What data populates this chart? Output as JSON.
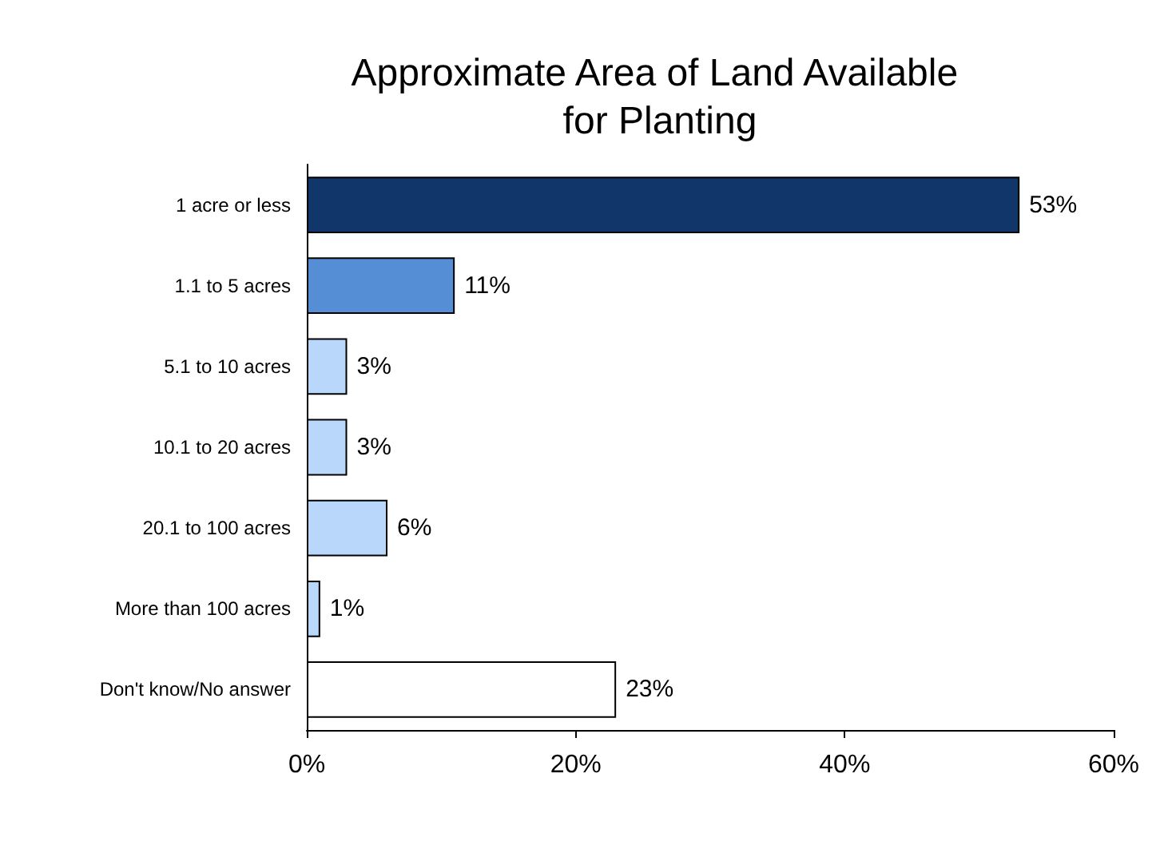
{
  "chart_data": {
    "type": "bar",
    "orientation": "horizontal",
    "title": "Approximate Area of Land Available for Planting",
    "categories": [
      "1 acre or less",
      "1.1 to 5 acres",
      "5.1 to 10 acres",
      "10.1 to 20 acres",
      "20.1 to 100 acres",
      "More than 100 acres",
      "Don't know/No answer"
    ],
    "values": [
      53,
      11,
      3,
      3,
      6,
      1,
      23
    ],
    "colors": [
      "#10366a",
      "#558ed5",
      "#b9d7fb",
      "#b9d7fb",
      "#b9d7fb",
      "#b9d7fb",
      "#ffffff"
    ],
    "value_labels": [
      "53%",
      "11%",
      "3%",
      "3%",
      "6%",
      "1%",
      "23%"
    ],
    "xlim": [
      0,
      60
    ],
    "xticks": [
      {
        "value": 0,
        "label": "0%"
      },
      {
        "value": 20,
        "label": "20%"
      },
      {
        "value": 40,
        "label": "40%"
      },
      {
        "value": 60,
        "label": "60%"
      }
    ],
    "grid": false
  }
}
